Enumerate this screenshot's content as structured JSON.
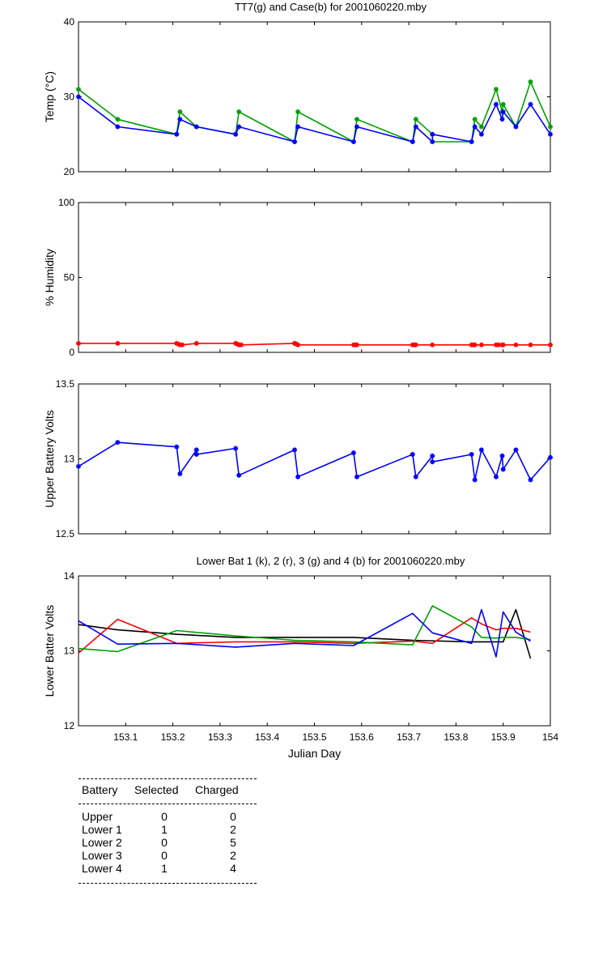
{
  "chart_data": [
    {
      "type": "line",
      "title": "TT7(g) and Case(b) for 2001060220.mby",
      "xlabel": "",
      "ylabel": "Temp  (°C)",
      "xlim": [
        153.0,
        154.0
      ],
      "ylim": [
        20,
        40
      ],
      "yticks": [
        20,
        30,
        40
      ],
      "series": [
        {
          "name": "TT7",
          "color": "#00a000",
          "marker": "*",
          "x": [
            153.0,
            153.083,
            153.208,
            153.215,
            153.25,
            153.333,
            153.34,
            153.458,
            153.465,
            153.583,
            153.59,
            153.708,
            153.715,
            153.75,
            153.75,
            153.833,
            153.84,
            153.854,
            153.885,
            153.898,
            153.9,
            153.927,
            153.958,
            154.0
          ],
          "y": [
            31,
            27,
            25,
            28,
            26,
            25,
            28,
            24,
            28,
            24,
            27,
            24,
            27,
            25,
            24,
            24,
            27,
            26,
            31,
            28,
            29,
            26,
            32,
            26
          ]
        },
        {
          "name": "Case",
          "color": "#0000ff",
          "marker": "*",
          "x": [
            153.0,
            153.083,
            153.208,
            153.215,
            153.25,
            153.333,
            153.34,
            153.458,
            153.465,
            153.583,
            153.59,
            153.708,
            153.715,
            153.75,
            153.75,
            153.833,
            153.84,
            153.854,
            153.885,
            153.898,
            153.9,
            153.927,
            153.958,
            154.0
          ],
          "y": [
            30,
            26,
            25,
            27,
            26,
            25,
            26,
            24,
            26,
            24,
            26,
            24,
            26,
            24,
            25,
            24,
            26,
            25,
            29,
            27,
            28,
            26,
            29,
            25
          ]
        }
      ]
    },
    {
      "type": "line",
      "title": "",
      "xlabel": "",
      "ylabel": "% Humidity",
      "xlim": [
        153.0,
        154.0
      ],
      "ylim": [
        0,
        100
      ],
      "yticks": [
        0,
        50,
        100
      ],
      "series": [
        {
          "name": "Humidity",
          "color": "#ff0000",
          "marker": "*",
          "x": [
            153.0,
            153.083,
            153.208,
            153.212,
            153.215,
            153.22,
            153.25,
            153.333,
            153.337,
            153.34,
            153.345,
            153.458,
            153.462,
            153.465,
            153.583,
            153.587,
            153.59,
            153.708,
            153.712,
            153.715,
            153.75,
            153.833,
            153.837,
            153.84,
            153.854,
            153.885,
            153.89,
            153.898,
            153.9,
            153.927,
            153.958,
            154.0
          ],
          "y": [
            6,
            6,
            6,
            5.5,
            5,
            5,
            6,
            6,
            5.5,
            5,
            5,
            6,
            5.5,
            5,
            5,
            5,
            5,
            5,
            5,
            5,
            5,
            5,
            5,
            5,
            5,
            5,
            5,
            5,
            5,
            5,
            5,
            5
          ]
        }
      ]
    },
    {
      "type": "line",
      "title": "",
      "xlabel": "",
      "ylabel": "Upper Battery Volts",
      "xlim": [
        153.0,
        154.0
      ],
      "ylim": [
        12.5,
        13.5
      ],
      "yticks": [
        12.5,
        13,
        13.5
      ],
      "series": [
        {
          "name": "Upper",
          "color": "#0000ff",
          "marker": "*",
          "x": [
            153.0,
            153.083,
            153.208,
            153.215,
            153.25,
            153.25,
            153.333,
            153.34,
            153.458,
            153.465,
            153.583,
            153.59,
            153.708,
            153.715,
            153.75,
            153.75,
            153.833,
            153.84,
            153.854,
            153.885,
            153.898,
            153.9,
            153.927,
            153.958,
            154.0
          ],
          "y": [
            12.95,
            13.11,
            13.08,
            12.9,
            13.06,
            13.03,
            13.07,
            12.89,
            13.06,
            12.88,
            13.04,
            12.88,
            13.03,
            12.88,
            13.02,
            12.98,
            13.03,
            12.86,
            13.06,
            12.88,
            13.02,
            12.93,
            13.06,
            12.86,
            13.01
          ]
        }
      ]
    },
    {
      "type": "line",
      "title": "Lower Bat 1 (k), 2 (r), 3 (g) and 4 (b) for 2001060220.mby",
      "xlabel": "Julian Day",
      "ylabel": "Lower Batter Volts",
      "xlim": [
        153.0,
        154.0
      ],
      "ylim": [
        12,
        14
      ],
      "yticks": [
        12,
        13,
        14
      ],
      "xticks": [
        153.1,
        153.2,
        153.3,
        153.4,
        153.5,
        153.6,
        153.7,
        153.8,
        153.9,
        154
      ],
      "xtick_labels": [
        "153.1",
        "153.2",
        "153.3",
        "153.4",
        "153.5",
        "153.6",
        "153.7",
        "153.8",
        "153.9",
        "154"
      ],
      "series": [
        {
          "name": "Lower 1",
          "color": "#000000",
          "x": [
            153.0,
            153.083,
            153.208,
            153.333,
            153.458,
            153.583,
            153.708,
            153.833,
            153.9,
            153.927,
            153.958
          ],
          "y": [
            13.35,
            13.28,
            13.22,
            13.18,
            13.18,
            13.18,
            13.14,
            13.12,
            13.12,
            13.55,
            12.9
          ]
        },
        {
          "name": "Lower 2",
          "color": "#ff0000",
          "x": [
            153.0,
            153.083,
            153.208,
            153.333,
            153.458,
            153.583,
            153.708,
            153.75,
            153.833,
            153.854,
            153.885,
            153.9,
            153.927,
            153.958
          ],
          "y": [
            12.97,
            13.42,
            13.1,
            13.12,
            13.12,
            13.1,
            13.13,
            13.1,
            13.44,
            13.36,
            13.28,
            13.3,
            13.3,
            13.25
          ]
        },
        {
          "name": "Lower 3",
          "color": "#00a000",
          "x": [
            153.0,
            153.083,
            153.208,
            153.333,
            153.458,
            153.583,
            153.708,
            153.75,
            153.833,
            153.854,
            153.885,
            153.9,
            153.927,
            153.958
          ],
          "y": [
            13.03,
            12.99,
            13.27,
            13.2,
            13.14,
            13.12,
            13.08,
            13.6,
            13.32,
            13.18,
            13.17,
            13.18,
            13.18,
            13.15
          ]
        },
        {
          "name": "Lower 4",
          "color": "#0000ff",
          "x": [
            153.0,
            153.083,
            153.208,
            153.333,
            153.458,
            153.583,
            153.708,
            153.75,
            153.833,
            153.854,
            153.885,
            153.9,
            153.927,
            153.958
          ],
          "y": [
            13.4,
            13.09,
            13.1,
            13.05,
            13.1,
            13.07,
            13.5,
            13.24,
            13.1,
            13.55,
            12.92,
            13.52,
            13.25,
            13.13
          ]
        }
      ]
    }
  ],
  "status_table": {
    "headers": [
      "Battery",
      "Selected",
      "Charged"
    ],
    "rows": [
      {
        "battery": "Upper",
        "selected": "0",
        "charged": "0"
      },
      {
        "battery": "Lower 1",
        "selected": "1",
        "charged": "2"
      },
      {
        "battery": "Lower 2",
        "selected": "0",
        "charged": "5"
      },
      {
        "battery": "Lower 3",
        "selected": "0",
        "charged": "2"
      },
      {
        "battery": "Lower 4",
        "selected": "1",
        "charged": "4"
      }
    ]
  }
}
